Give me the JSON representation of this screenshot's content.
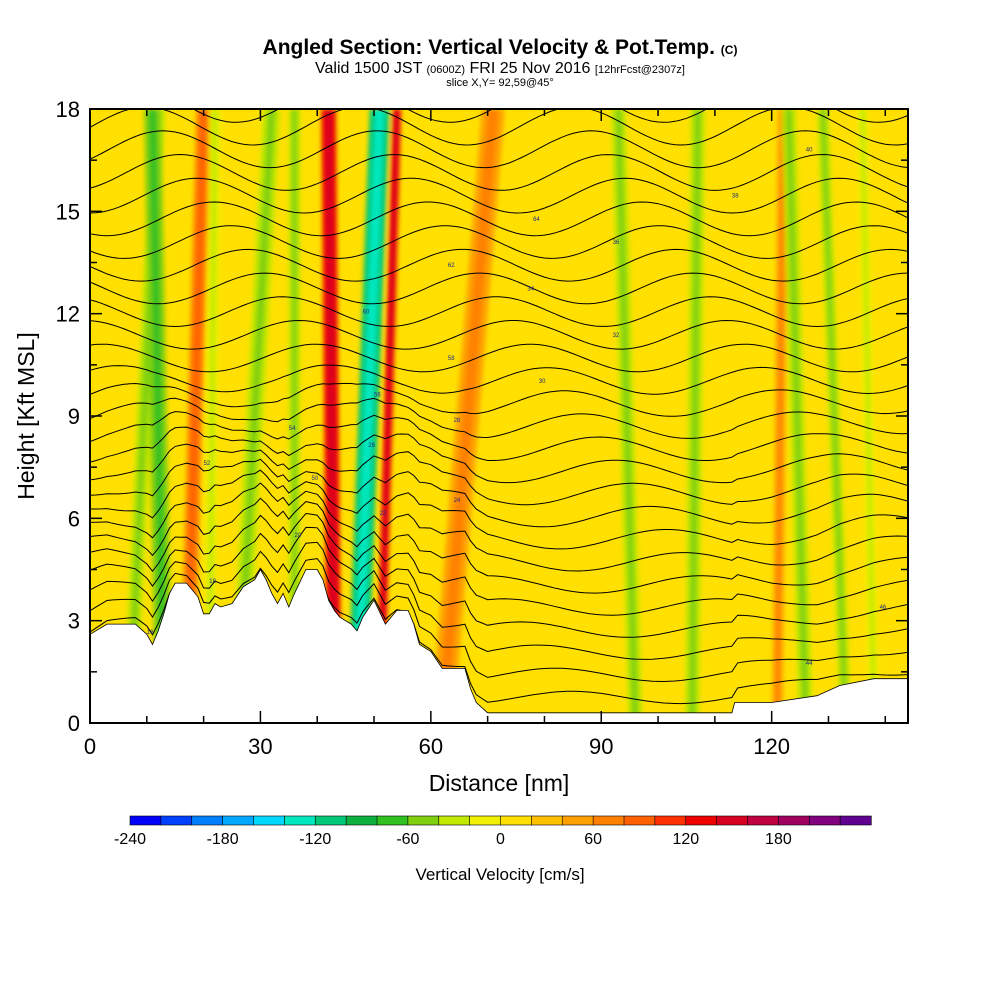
{
  "header": {
    "title": "Angled Section: Vertical Velocity & Pot.Temp.",
    "title_suffix": "(C)",
    "valid_prefix": "Valid 1500 JST",
    "valid_z": "(0600Z)",
    "valid_date": "FRI 25 Nov 2016",
    "valid_fcst": "[12hrFcst@2307z]",
    "slice": "slice X,Y= 92,59@45°"
  },
  "chart_data": {
    "type": "heatmap",
    "xlabel": "Distance [nm]",
    "ylabel": "Height [Kft MSL]",
    "xlim": [
      0,
      144
    ],
    "ylim": [
      0,
      18
    ],
    "x_ticks": [
      0,
      30,
      60,
      90,
      120
    ],
    "x_tick_labels": [
      "0",
      "30",
      "60",
      "90",
      "120"
    ],
    "y_ticks": [
      0,
      3,
      6,
      9,
      12,
      15,
      18
    ],
    "y_tick_labels": [
      "0",
      "3",
      "6",
      "9",
      "12",
      "15",
      "18"
    ],
    "colorbar": {
      "label": "Vertical Velocity [cm/s]",
      "min": -240,
      "max": 240,
      "step": 20,
      "tick_values": [
        -240,
        -180,
        -120,
        -60,
        0,
        60,
        120,
        180
      ],
      "tick_labels": [
        "-240",
        "-180",
        "-120",
        "-60",
        "0",
        "60",
        "120",
        "180"
      ],
      "colors": [
        "#0000ff",
        "#0040ff",
        "#0080ff",
        "#00a8ff",
        "#00d8ff",
        "#00e8c0",
        "#00c878",
        "#10b040",
        "#30c020",
        "#80d010",
        "#c0e800",
        "#f0f000",
        "#ffe000",
        "#ffc000",
        "#ffa000",
        "#ff8000",
        "#ff6000",
        "#ff3000",
        "#ee0000",
        "#d80020",
        "#c00040",
        "#a00060",
        "#800080",
        "#600090"
      ]
    },
    "terrain_profile": {
      "x": [
        0,
        3,
        5,
        8,
        10,
        11,
        12,
        13,
        14,
        15,
        17,
        19,
        20,
        21,
        22,
        23,
        25,
        27,
        29,
        30,
        31,
        32,
        33,
        34,
        35,
        36,
        38,
        40,
        41,
        42,
        43,
        44,
        46,
        47,
        48,
        50,
        52,
        54,
        56,
        57,
        58,
        60,
        62,
        64,
        66,
        67,
        68,
        70,
        80,
        90,
        100,
        113,
        113.5,
        120,
        128,
        132,
        138,
        144
      ],
      "height_kft": [
        2.6,
        2.9,
        2.9,
        2.9,
        2.6,
        2.3,
        2.7,
        3.2,
        3.8,
        4.1,
        4.1,
        3.7,
        3.2,
        3.2,
        3.5,
        3.4,
        3.5,
        4.0,
        4.2,
        4.5,
        4.2,
        3.8,
        3.5,
        3.8,
        3.4,
        3.8,
        4.5,
        4.5,
        4.2,
        3.6,
        3.3,
        3.1,
        2.9,
        2.7,
        3.1,
        3.6,
        2.9,
        3.3,
        3.3,
        2.9,
        2.3,
        2.1,
        1.6,
        1.6,
        1.6,
        1.0,
        0.6,
        0.3,
        0.3,
        0.3,
        0.3,
        0.3,
        0.6,
        0.6,
        0.8,
        1.1,
        1.3,
        1.3
      ]
    },
    "velocity_bands": [
      {
        "x_bottom": 7,
        "x_top": 12,
        "width": 2.5,
        "value": -40
      },
      {
        "x_bottom": 17,
        "x_top": 20,
        "width": 2.5,
        "value": 60
      },
      {
        "x_bottom": 13,
        "x_top": 11,
        "width": 3.0,
        "value": -50
      },
      {
        "x_bottom": 26,
        "x_top": 32,
        "width": 3.0,
        "value": -30
      },
      {
        "x_bottom": 21,
        "x_top": 22,
        "width": 2.0,
        "value": -20
      },
      {
        "x_bottom": 36,
        "x_top": 36,
        "width": 2.0,
        "value": -30
      },
      {
        "x_bottom": 43,
        "x_top": 42,
        "width": 2.5,
        "value": 130
      },
      {
        "x_bottom": 47,
        "x_top": 51,
        "width": 3.5,
        "value": -110
      },
      {
        "x_bottom": 51,
        "x_top": 54,
        "width": 1.5,
        "value": 130
      },
      {
        "x_bottom": 62,
        "x_top": 71,
        "width": 4.0,
        "value": 40
      },
      {
        "x_bottom": 96,
        "x_top": 93,
        "width": 2.5,
        "value": -30
      },
      {
        "x_bottom": 106,
        "x_top": 107,
        "width": 2.5,
        "value": -40
      },
      {
        "x_bottom": 121,
        "x_top": 122,
        "width": 1.8,
        "value": 50
      },
      {
        "x_bottom": 126,
        "x_top": 123,
        "width": 2.5,
        "value": -40
      },
      {
        "x_bottom": 133,
        "x_top": 129,
        "width": 2.0,
        "value": -30
      },
      {
        "x_bottom": 138,
        "x_top": 136,
        "width": 1.8,
        "value": -20
      }
    ],
    "isentrope_labels": [
      "16",
      "18",
      "20",
      "22",
      "24",
      "26",
      "28",
      "30",
      "32",
      "34",
      "36",
      "38",
      "40",
      "42",
      "44",
      "46",
      "48",
      "50",
      "52",
      "54",
      "56",
      "58",
      "60",
      "62",
      "64"
    ]
  }
}
